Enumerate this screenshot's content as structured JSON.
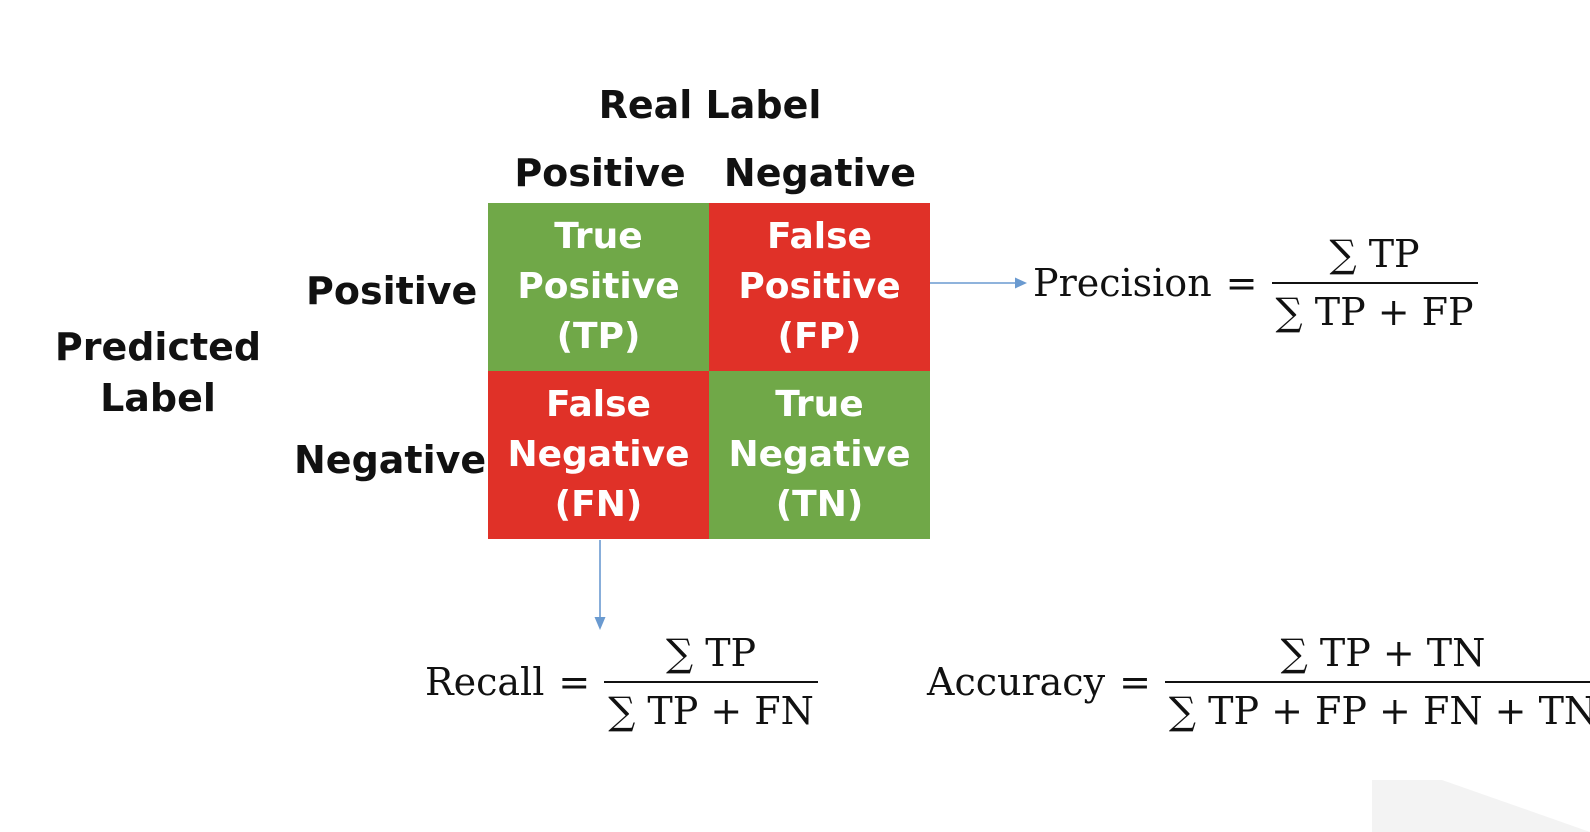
{
  "header": {
    "real_label": "Real Label",
    "col_positive": "Positive",
    "col_negative": "Negative",
    "row_positive": "Positive",
    "row_negative": "Negative",
    "predicted_line1": "Predicted",
    "predicted_line2": "Label"
  },
  "matrix": {
    "tp": {
      "l1": "True",
      "l2": "Positive",
      "l3": "(TP)"
    },
    "fp": {
      "l1": "False",
      "l2": "Positive",
      "l3": "(FP)"
    },
    "fn": {
      "l1": "False",
      "l2": "Negative",
      "l3": "(FN)"
    },
    "tn": {
      "l1": "True",
      "l2": "Negative",
      "l3": "(TN)"
    }
  },
  "colors": {
    "true_cell": "#70A848",
    "false_cell": "#E03128",
    "arrow": "#6A9AD0",
    "text": "#111111"
  },
  "formulas": {
    "precision": {
      "name": "Precision",
      "eq": "=",
      "num": "∑ TP",
      "den": "∑ TP + FP"
    },
    "recall": {
      "name": "Recall",
      "eq": "=",
      "num": "∑ TP",
      "den": "∑ TP + FN"
    },
    "accuracy": {
      "name": "Accuracy",
      "eq": "=",
      "num": "∑ TP + TN",
      "den": "∑ TP + FP + FN + TN"
    }
  }
}
